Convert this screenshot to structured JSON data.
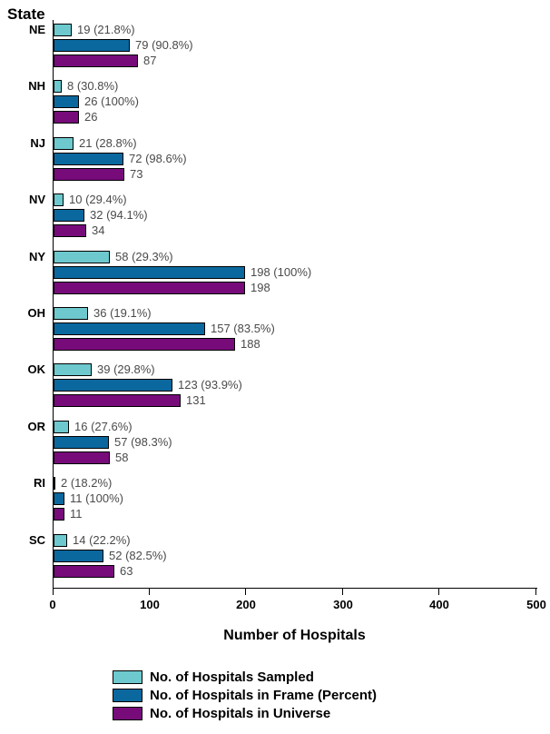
{
  "chart_data": {
    "type": "bar",
    "orientation": "horizontal",
    "y_axis_title": "State",
    "xlabel": "Number of Hospitals",
    "xlim": [
      0,
      500
    ],
    "xticks": [
      0,
      100,
      200,
      300,
      400,
      500
    ],
    "grid": "off",
    "legend_position": "bottom",
    "categories": [
      "NE",
      "NH",
      "NJ",
      "NV",
      "NY",
      "OH",
      "OK",
      "OR",
      "RI",
      "SC"
    ],
    "series": [
      {
        "name": "No. of Hospitals Sampled",
        "color": "#6DC9CE",
        "values": [
          19,
          8,
          21,
          10,
          58,
          36,
          39,
          16,
          2,
          14
        ],
        "labels": [
          "19 (21.8%)",
          "8 (30.8%)",
          "21 (28.8%)",
          "10 (29.4%)",
          "58 (29.3%)",
          "36 (19.1%)",
          "39 (29.8%)",
          "16 (27.6%)",
          "2 (18.2%)",
          "14 (22.2%)"
        ]
      },
      {
        "name": "No. of Hospitals in Frame (Percent)",
        "color": "#0A689E",
        "values": [
          79,
          26,
          72,
          32,
          198,
          157,
          123,
          57,
          11,
          52
        ],
        "labels": [
          "79 (90.8%)",
          "26 (100%)",
          "72 (98.6%)",
          "32 (94.1%)",
          "198 (100%)",
          "157 (83.5%)",
          "123 (93.9%)",
          "57 (98.3%)",
          "11 (100%)",
          "52 (82.5%)"
        ]
      },
      {
        "name": "No. of Hospitals in Universe",
        "color": "#770B7A",
        "values": [
          87,
          26,
          73,
          34,
          198,
          188,
          131,
          58,
          11,
          63
        ],
        "labels": [
          "87",
          "26",
          "73",
          "34",
          "198",
          "188",
          "131",
          "58",
          "11",
          "63"
        ]
      }
    ]
  }
}
